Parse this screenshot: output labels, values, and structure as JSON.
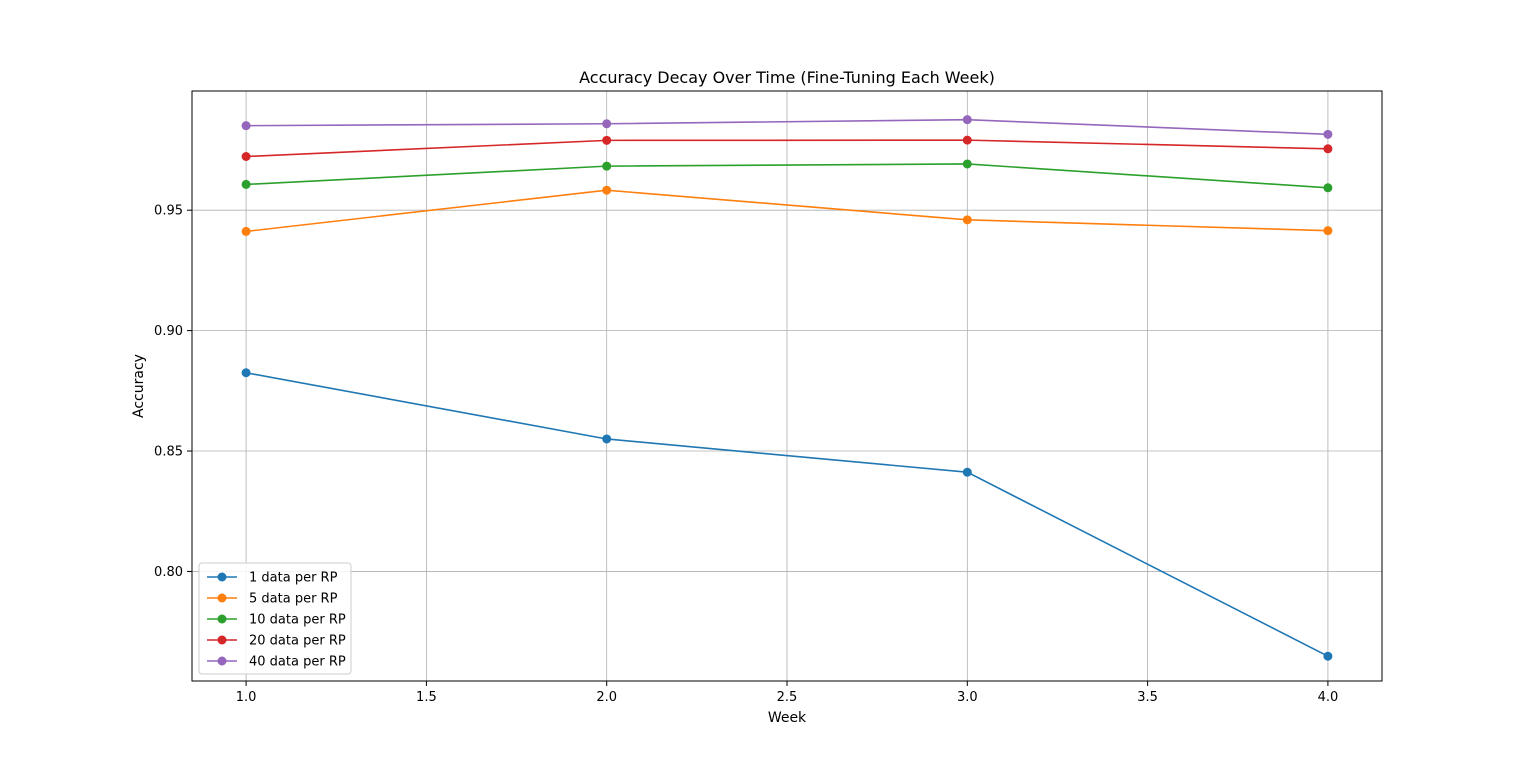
{
  "chart_data": {
    "type": "line",
    "title": "Accuracy Decay Over Time (Fine-Tuning Each Week)",
    "xlabel": "Week",
    "ylabel": "Accuracy",
    "x": [
      1.0,
      2.0,
      3.0,
      4.0
    ],
    "xlim": [
      0.85,
      4.15
    ],
    "ylim": [
      0.7545,
      0.9995
    ],
    "xticks": [
      1.0,
      1.5,
      2.0,
      2.5,
      3.0,
      3.5,
      4.0
    ],
    "xtick_labels": [
      "1.0",
      "1.5",
      "2.0",
      "2.5",
      "3.0",
      "3.5",
      "4.0"
    ],
    "yticks": [
      0.8,
      0.85,
      0.9,
      0.95
    ],
    "ytick_labels": [
      "0.80",
      "0.85",
      "0.90",
      "0.95"
    ],
    "grid": true,
    "legend_position": "lower-left",
    "series": [
      {
        "name": "1 data per RP",
        "color": "#1f77b4",
        "values": [
          0.8825,
          0.855,
          0.8412,
          0.7648
        ]
      },
      {
        "name": "5 data per RP",
        "color": "#ff7f0e",
        "values": [
          0.9412,
          0.9583,
          0.946,
          0.9415
        ]
      },
      {
        "name": "10 data per RP",
        "color": "#2ca02c",
        "values": [
          0.9607,
          0.9683,
          0.9692,
          0.9593
        ]
      },
      {
        "name": "20 data per RP",
        "color": "#d62728",
        "values": [
          0.9723,
          0.979,
          0.9791,
          0.9755
        ]
      },
      {
        "name": "40 data per RP",
        "color": "#9467bd",
        "values": [
          0.9851,
          0.9859,
          0.9876,
          0.9815
        ]
      }
    ]
  }
}
